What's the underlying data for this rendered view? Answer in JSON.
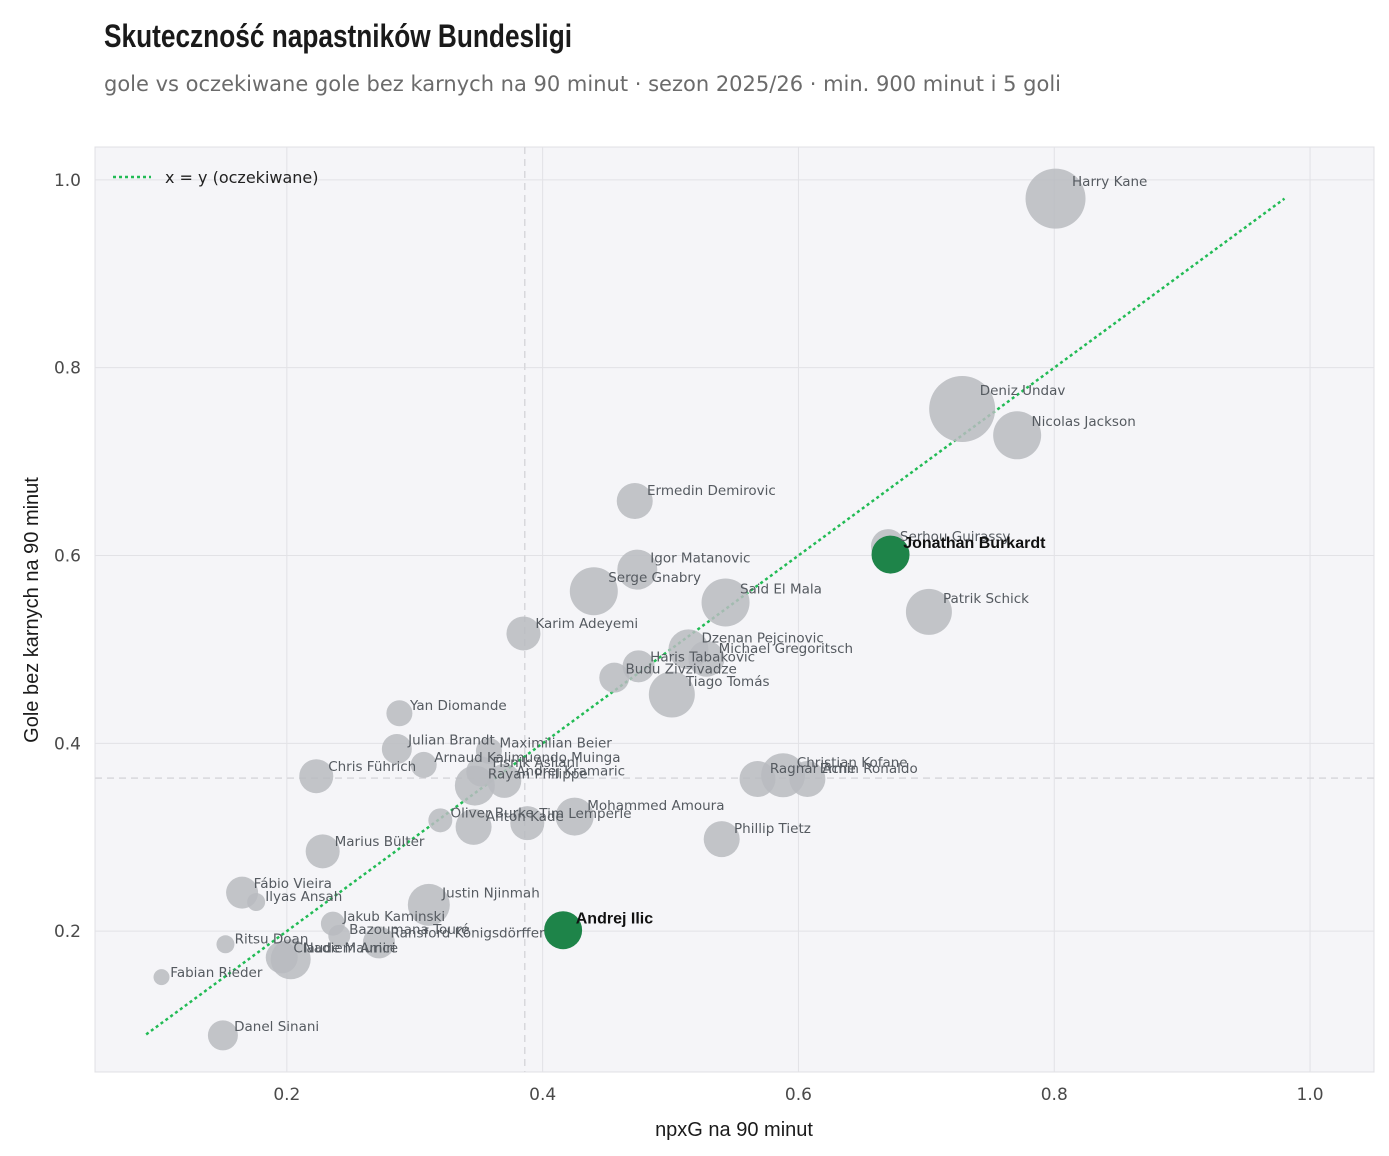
{
  "title": "Skuteczność napastników Bundesligi",
  "subtitle": "gole vs oczekiwane gole bez karnych na 90 minut · sezon 2025/26 · min. 900 minut i 5 goli",
  "colors": {
    "panel": "#f5f5f8",
    "point": "#b9bbbf",
    "highlight": "#1e8449",
    "diagonal": "#22bb55",
    "grid": "#e2e2e6"
  },
  "chart_data": {
    "type": "scatter",
    "xlabel": "npxG na 90 minut",
    "ylabel": "Gole bez karnych na 90 minut",
    "xlim": [
      0.05,
      1.05
    ],
    "ylim": [
      0.05,
      1.035
    ],
    "xticks": [
      0.2,
      0.4,
      0.6,
      0.8,
      1.0
    ],
    "yticks": [
      0.2,
      0.4,
      0.6,
      0.8,
      1.0
    ],
    "tick_labels_x": [
      "0.2",
      "0.4",
      "0.6",
      "0.8",
      "1.0"
    ],
    "tick_labels_y": [
      "0.2",
      "0.4",
      "0.6",
      "0.8",
      "1.0"
    ],
    "reference_lines": {
      "x_mean": 0.386,
      "y_mean": 0.363
    },
    "diagonal": {
      "label": "x = y (oczekiwane)",
      "from": 0.09,
      "to": 0.98
    },
    "legend_position": "top-left",
    "points": [
      {
        "name": "Harry Kane",
        "x": 0.801,
        "y": 0.98,
        "size": 30
      },
      {
        "name": "Deniz Undav",
        "x": 0.728,
        "y": 0.756,
        "size": 33
      },
      {
        "name": "Nicolas Jackson",
        "x": 0.771,
        "y": 0.728,
        "size": 24
      },
      {
        "name": "Ermedin Demirovic",
        "x": 0.472,
        "y": 0.658,
        "size": 18
      },
      {
        "name": "Serhou Guirassy",
        "x": 0.67,
        "y": 0.61,
        "size": 17
      },
      {
        "name": "Jonathan Burkardt",
        "x": 0.672,
        "y": 0.601,
        "size": 19,
        "highlight": true
      },
      {
        "name": "Igor Matanovic",
        "x": 0.474,
        "y": 0.585,
        "size": 20
      },
      {
        "name": "Serge Gnabry",
        "x": 0.44,
        "y": 0.562,
        "size": 24
      },
      {
        "name": "Said El Mala",
        "x": 0.543,
        "y": 0.55,
        "size": 24
      },
      {
        "name": "Patrik Schick",
        "x": 0.702,
        "y": 0.54,
        "size": 23
      },
      {
        "name": "Karim Adeyemi",
        "x": 0.385,
        "y": 0.517,
        "size": 17
      },
      {
        "name": "Dzenan Pejcinovic",
        "x": 0.514,
        "y": 0.5,
        "size": 20
      },
      {
        "name": "Michael Gregoritsch",
        "x": 0.528,
        "y": 0.49,
        "size": 18
      },
      {
        "name": "Haris Tabakovic",
        "x": 0.475,
        "y": 0.482,
        "size": 16
      },
      {
        "name": "Budu Zivzivadze",
        "x": 0.456,
        "y": 0.47,
        "size": 15
      },
      {
        "name": "Tiago Tomás",
        "x": 0.501,
        "y": 0.452,
        "size": 23
      },
      {
        "name": "Yan Diomande",
        "x": 0.288,
        "y": 0.432,
        "size": 13
      },
      {
        "name": "Julian Brandt",
        "x": 0.286,
        "y": 0.394,
        "size": 15
      },
      {
        "name": "Maximilian Beier",
        "x": 0.358,
        "y": 0.392,
        "size": 13
      },
      {
        "name": "Arnaud Kalimuendo Muinga",
        "x": 0.307,
        "y": 0.377,
        "size": 13
      },
      {
        "name": "Fisnik Asllani",
        "x": 0.352,
        "y": 0.37,
        "size": 15
      },
      {
        "name": "Chris Führich",
        "x": 0.223,
        "y": 0.365,
        "size": 17
      },
      {
        "name": "Christian Kofane",
        "x": 0.588,
        "y": 0.366,
        "size": 22
      },
      {
        "name": "Ragnar Ache",
        "x": 0.568,
        "y": 0.362,
        "size": 18
      },
      {
        "name": "Ermin Ronaldo",
        "x": 0.607,
        "y": 0.362,
        "size": 18
      },
      {
        "name": "Rayan Philippe",
        "x": 0.347,
        "y": 0.355,
        "size": 20
      },
      {
        "name": "Andrej Kramaric",
        "x": 0.37,
        "y": 0.36,
        "size": 17
      },
      {
        "name": "Oliver Burke",
        "x": 0.32,
        "y": 0.318,
        "size": 12
      },
      {
        "name": "Anton Kade",
        "x": 0.346,
        "y": 0.311,
        "size": 18
      },
      {
        "name": "Tim Lemperle",
        "x": 0.388,
        "y": 0.315,
        "size": 17
      },
      {
        "name": "Mohammed Amoura",
        "x": 0.425,
        "y": 0.322,
        "size": 19
      },
      {
        "name": "Phillip Tietz",
        "x": 0.54,
        "y": 0.298,
        "size": 18
      },
      {
        "name": "Marius Bülter",
        "x": 0.228,
        "y": 0.285,
        "size": 17
      },
      {
        "name": "Fábio Vieira",
        "x": 0.165,
        "y": 0.241,
        "size": 16
      },
      {
        "name": "Ilyas Ansah",
        "x": 0.176,
        "y": 0.231,
        "size": 9
      },
      {
        "name": "Justin Njinmah",
        "x": 0.311,
        "y": 0.228,
        "size": 21
      },
      {
        "name": "Jakub Kaminski",
        "x": 0.236,
        "y": 0.208,
        "size": 12
      },
      {
        "name": "Andrej Ilic",
        "x": 0.416,
        "y": 0.201,
        "size": 19,
        "highlight": true
      },
      {
        "name": "Bazoumana Touré",
        "x": 0.241,
        "y": 0.195,
        "size": 11
      },
      {
        "name": "Ransford Königsdörffer",
        "x": 0.272,
        "y": 0.188,
        "size": 16
      },
      {
        "name": "Ritsu Doan",
        "x": 0.152,
        "y": 0.186,
        "size": 9
      },
      {
        "name": "Nadiem Amiri",
        "x": 0.203,
        "y": 0.17,
        "size": 20
      },
      {
        "name": "Claude Maurice",
        "x": 0.196,
        "y": 0.172,
        "size": 16
      },
      {
        "name": "Fabian Rieder",
        "x": 0.102,
        "y": 0.151,
        "size": 8
      },
      {
        "name": "Danel Sinani",
        "x": 0.15,
        "y": 0.089,
        "size": 15
      }
    ]
  }
}
